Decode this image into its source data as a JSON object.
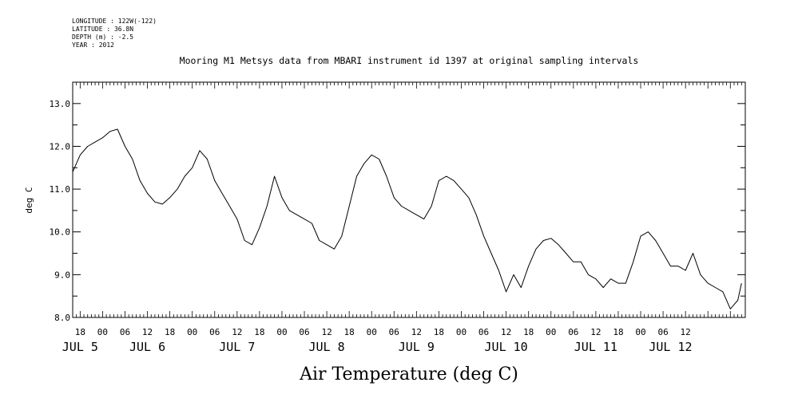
{
  "meta": {
    "longitude": "LONGITUDE : 122W(-122)",
    "latitude": "LATITUDE : 36.8N",
    "depth": "DEPTH (m) : -2.5",
    "year": "YEAR : 2012"
  },
  "chart_data": {
    "type": "line",
    "title": "Mooring M1 Metsys data from MBARI instrument id 1397 at original sampling intervals",
    "xlabel": "Air Temperature (deg C)",
    "ylabel": "deg C",
    "xlim": [
      -8,
      172
    ],
    "ylim": [
      8.0,
      13.5
    ],
    "x_units": "hours since JUL 5 00:00, 2012",
    "y_ticks": [
      "8.0",
      "9.0",
      "10.0",
      "11.0",
      "12.0",
      "13.0"
    ],
    "y_tick_values": [
      8.0,
      9.0,
      10.0,
      11.0,
      12.0,
      13.0
    ],
    "x_hour_ticks": [
      "18",
      "00",
      "06",
      "12",
      "18",
      "00",
      "06",
      "12",
      "18",
      "00",
      "06",
      "12",
      "18",
      "00",
      "06",
      "12",
      "18",
      "00",
      "06",
      "12",
      "18",
      "00",
      "06",
      "12",
      "18",
      "00",
      "06",
      "12"
    ],
    "day_labels": [
      {
        "label": "JUL  5",
        "hour": -6
      },
      {
        "label": "JUL  6",
        "hour": 12
      },
      {
        "label": "JUL  7",
        "hour": 36
      },
      {
        "label": "JUL  8",
        "hour": 60
      },
      {
        "label": "JUL  9",
        "hour": 84
      },
      {
        "label": "JUL 10",
        "hour": 108
      },
      {
        "label": "JUL 11",
        "hour": 132
      },
      {
        "label": "JUL 12",
        "hour": 152
      }
    ],
    "grid": false,
    "series": [
      {
        "color": "#000000",
        "x": [
          -8,
          -6,
          -4,
          -2,
          0,
          2,
          4,
          6,
          8,
          10,
          12,
          14,
          16,
          18,
          20,
          22,
          24,
          26,
          28,
          30,
          32,
          34,
          36,
          38,
          40,
          42,
          44,
          46,
          48,
          50,
          52,
          54,
          56,
          58,
          60,
          62,
          64,
          66,
          68,
          70,
          72,
          74,
          76,
          78,
          80,
          82,
          84,
          86,
          88,
          90,
          92,
          94,
          96,
          98,
          100,
          102,
          104,
          106,
          108,
          110,
          112,
          114,
          116,
          118,
          120,
          122,
          124,
          126,
          128,
          130,
          132,
          134,
          136,
          138,
          140,
          142,
          144,
          146,
          148,
          150,
          152,
          154,
          156,
          158,
          160,
          162,
          164,
          166,
          168,
          170,
          171
        ],
        "y": [
          11.4,
          11.8,
          12.0,
          12.1,
          12.2,
          12.35,
          12.4,
          12.0,
          11.7,
          11.2,
          10.9,
          10.7,
          10.65,
          10.8,
          11.0,
          11.3,
          11.5,
          11.9,
          11.7,
          11.2,
          10.9,
          10.6,
          10.3,
          9.8,
          9.7,
          10.1,
          10.6,
          11.3,
          10.8,
          10.5,
          10.4,
          10.3,
          10.2,
          9.8,
          9.7,
          9.6,
          9.9,
          10.6,
          11.3,
          11.6,
          11.8,
          11.7,
          11.3,
          10.8,
          10.6,
          10.5,
          10.4,
          10.3,
          10.6,
          11.2,
          11.3,
          11.2,
          11.0,
          10.8,
          10.4,
          9.9,
          9.5,
          9.1,
          8.6,
          9.0,
          8.7,
          9.2,
          9.6,
          9.8,
          9.85,
          9.7,
          9.5,
          9.3,
          9.3,
          9.0,
          8.9,
          8.7,
          8.9,
          8.8,
          8.8,
          9.3,
          9.9,
          10.0,
          9.8,
          9.5,
          9.2,
          9.2,
          9.1,
          9.5,
          9.0,
          8.8,
          8.7,
          8.6,
          8.2,
          8.4,
          8.8
        ]
      }
    ]
  }
}
